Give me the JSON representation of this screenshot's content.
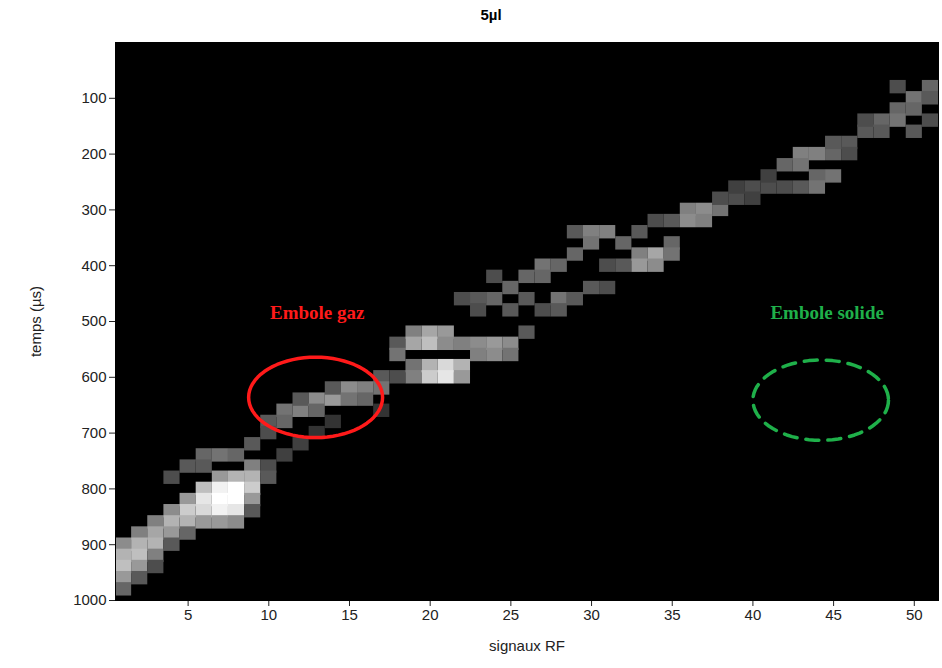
{
  "chart_data": {
    "type": "heatmap",
    "title": "5µl",
    "x_label": "signaux RF",
    "y_label": "temps (µs)",
    "xlim": [
      0.5,
      51.5
    ],
    "xticks": [
      5,
      10,
      15,
      20,
      25,
      30,
      35,
      40,
      45,
      50
    ],
    "ylim": [
      0,
      1000
    ],
    "yticks": [
      100,
      200,
      300,
      400,
      500,
      600,
      700,
      800,
      900,
      1000
    ],
    "grid": false,
    "color_range": [
      0,
      1
    ],
    "cells": [
      [
        1,
        900,
        0.55
      ],
      [
        1,
        920,
        0.7
      ],
      [
        1,
        940,
        0.75
      ],
      [
        1,
        960,
        0.6
      ],
      [
        1,
        980,
        0.4
      ],
      [
        2,
        880,
        0.5
      ],
      [
        2,
        900,
        0.7
      ],
      [
        2,
        920,
        0.75
      ],
      [
        2,
        940,
        0.6
      ],
      [
        2,
        960,
        0.35
      ],
      [
        3,
        860,
        0.5
      ],
      [
        3,
        880,
        0.65
      ],
      [
        3,
        900,
        0.7
      ],
      [
        3,
        920,
        0.5
      ],
      [
        3,
        940,
        0.3
      ],
      [
        4,
        780,
        0.3
      ],
      [
        4,
        840,
        0.55
      ],
      [
        4,
        860,
        0.7
      ],
      [
        4,
        880,
        0.6
      ],
      [
        4,
        900,
        0.35
      ],
      [
        5,
        760,
        0.35
      ],
      [
        5,
        820,
        0.6
      ],
      [
        5,
        840,
        0.8
      ],
      [
        5,
        860,
        0.7
      ],
      [
        5,
        880,
        0.4
      ],
      [
        6,
        740,
        0.4
      ],
      [
        6,
        760,
        0.35
      ],
      [
        6,
        800,
        0.75
      ],
      [
        6,
        820,
        0.9
      ],
      [
        6,
        840,
        0.85
      ],
      [
        6,
        860,
        0.6
      ],
      [
        7,
        740,
        0.45
      ],
      [
        7,
        780,
        0.6
      ],
      [
        7,
        800,
        0.95
      ],
      [
        7,
        820,
        1
      ],
      [
        7,
        840,
        0.95
      ],
      [
        7,
        860,
        0.6
      ],
      [
        8,
        740,
        0.4
      ],
      [
        8,
        780,
        0.7
      ],
      [
        8,
        800,
        1
      ],
      [
        8,
        820,
        1
      ],
      [
        8,
        840,
        0.9
      ],
      [
        8,
        860,
        0.55
      ],
      [
        9,
        720,
        0.35
      ],
      [
        9,
        760,
        0.5
      ],
      [
        9,
        780,
        0.7
      ],
      [
        9,
        800,
        0.8
      ],
      [
        9,
        820,
        0.6
      ],
      [
        9,
        840,
        0.35
      ],
      [
        10,
        680,
        0.35
      ],
      [
        10,
        700,
        0.3
      ],
      [
        10,
        760,
        0.3
      ],
      [
        10,
        780,
        0.35
      ],
      [
        11,
        660,
        0.45
      ],
      [
        11,
        680,
        0.4
      ],
      [
        11,
        740,
        0.25
      ],
      [
        12,
        660,
        0.5
      ],
      [
        12,
        640,
        0.35
      ],
      [
        12,
        720,
        0.25
      ],
      [
        13,
        640,
        0.55
      ],
      [
        13,
        660,
        0.4
      ],
      [
        13,
        700,
        0.2
      ],
      [
        14,
        640,
        0.6
      ],
      [
        14,
        620,
        0.35
      ],
      [
        14,
        680,
        0.2
      ],
      [
        15,
        620,
        0.55
      ],
      [
        15,
        640,
        0.45
      ],
      [
        16,
        620,
        0.5
      ],
      [
        16,
        640,
        0.4
      ],
      [
        17,
        600,
        0.35
      ],
      [
        17,
        620,
        0.45
      ],
      [
        17,
        660,
        0.2
      ],
      [
        18,
        540,
        0.35
      ],
      [
        18,
        560,
        0.45
      ],
      [
        18,
        600,
        0.3
      ],
      [
        19,
        520,
        0.5
      ],
      [
        19,
        540,
        0.65
      ],
      [
        19,
        580,
        0.45
      ],
      [
        19,
        600,
        0.5
      ],
      [
        20,
        520,
        0.65
      ],
      [
        20,
        540,
        0.75
      ],
      [
        20,
        580,
        0.7
      ],
      [
        20,
        600,
        0.8
      ],
      [
        21,
        520,
        0.6
      ],
      [
        21,
        540,
        0.55
      ],
      [
        21,
        580,
        0.85
      ],
      [
        21,
        600,
        0.9
      ],
      [
        22,
        540,
        0.5
      ],
      [
        22,
        580,
        0.7
      ],
      [
        22,
        600,
        0.6
      ],
      [
        22,
        460,
        0.3
      ],
      [
        23,
        540,
        0.55
      ],
      [
        23,
        560,
        0.5
      ],
      [
        23,
        460,
        0.35
      ],
      [
        23,
        480,
        0.3
      ],
      [
        24,
        540,
        0.6
      ],
      [
        24,
        560,
        0.55
      ],
      [
        24,
        460,
        0.4
      ],
      [
        24,
        420,
        0.3
      ],
      [
        25,
        540,
        0.55
      ],
      [
        25,
        560,
        0.45
      ],
      [
        25,
        440,
        0.4
      ],
      [
        25,
        480,
        0.35
      ],
      [
        26,
        520,
        0.35
      ],
      [
        26,
        420,
        0.4
      ],
      [
        26,
        460,
        0.35
      ],
      [
        27,
        400,
        0.45
      ],
      [
        27,
        420,
        0.4
      ],
      [
        27,
        480,
        0.3
      ],
      [
        28,
        400,
        0.4
      ],
      [
        28,
        460,
        0.45
      ],
      [
        28,
        480,
        0.35
      ],
      [
        29,
        340,
        0.35
      ],
      [
        29,
        380,
        0.4
      ],
      [
        29,
        460,
        0.35
      ],
      [
        30,
        340,
        0.5
      ],
      [
        30,
        360,
        0.45
      ],
      [
        30,
        440,
        0.35
      ],
      [
        31,
        340,
        0.5
      ],
      [
        31,
        440,
        0.3
      ],
      [
        31,
        400,
        0.3
      ],
      [
        32,
        360,
        0.4
      ],
      [
        32,
        400,
        0.35
      ],
      [
        33,
        340,
        0.35
      ],
      [
        33,
        380,
        0.5
      ],
      [
        33,
        400,
        0.6
      ],
      [
        34,
        320,
        0.3
      ],
      [
        34,
        380,
        0.65
      ],
      [
        34,
        400,
        0.55
      ],
      [
        35,
        320,
        0.35
      ],
      [
        35,
        360,
        0.4
      ],
      [
        35,
        380,
        0.45
      ],
      [
        36,
        300,
        0.5
      ],
      [
        36,
        320,
        0.55
      ],
      [
        37,
        300,
        0.55
      ],
      [
        37,
        320,
        0.5
      ],
      [
        38,
        300,
        0.45
      ],
      [
        38,
        280,
        0.3
      ],
      [
        39,
        280,
        0.3
      ],
      [
        39,
        260,
        0.25
      ],
      [
        40,
        260,
        0.3
      ],
      [
        40,
        280,
        0.25
      ],
      [
        41,
        260,
        0.3
      ],
      [
        41,
        240,
        0.25
      ],
      [
        42,
        220,
        0.4
      ],
      [
        42,
        260,
        0.3
      ],
      [
        43,
        200,
        0.5
      ],
      [
        43,
        220,
        0.45
      ],
      [
        43,
        260,
        0.35
      ],
      [
        44,
        200,
        0.5
      ],
      [
        44,
        240,
        0.4
      ],
      [
        44,
        260,
        0.45
      ],
      [
        45,
        200,
        0.4
      ],
      [
        45,
        240,
        0.45
      ],
      [
        45,
        180,
        0.35
      ],
      [
        46,
        180,
        0.35
      ],
      [
        46,
        200,
        0.3
      ],
      [
        47,
        160,
        0.35
      ],
      [
        47,
        140,
        0.3
      ],
      [
        48,
        140,
        0.4
      ],
      [
        48,
        160,
        0.35
      ],
      [
        49,
        120,
        0.4
      ],
      [
        49,
        140,
        0.45
      ],
      [
        49,
        80,
        0.3
      ],
      [
        50,
        100,
        0.45
      ],
      [
        50,
        120,
        0.4
      ],
      [
        50,
        160,
        0.35
      ],
      [
        51,
        80,
        0.4
      ],
      [
        51,
        100,
        0.35
      ],
      [
        51,
        140,
        0.3
      ]
    ],
    "annotations": [
      {
        "text": "Embole gaz",
        "color": "#ff1a1a",
        "x": 13,
        "y": 485,
        "ellipse": {
          "x": 12.9,
          "y": 636,
          "rx": 4.15,
          "ry": 72
        },
        "line_style": "solid"
      },
      {
        "text": "Embole solide",
        "color": "#1fb04a",
        "x": 44.6,
        "y": 485,
        "ellipse": {
          "x": 44.2,
          "y": 641,
          "rx": 4.2,
          "ry": 72
        },
        "line_style": "dashed"
      }
    ]
  }
}
